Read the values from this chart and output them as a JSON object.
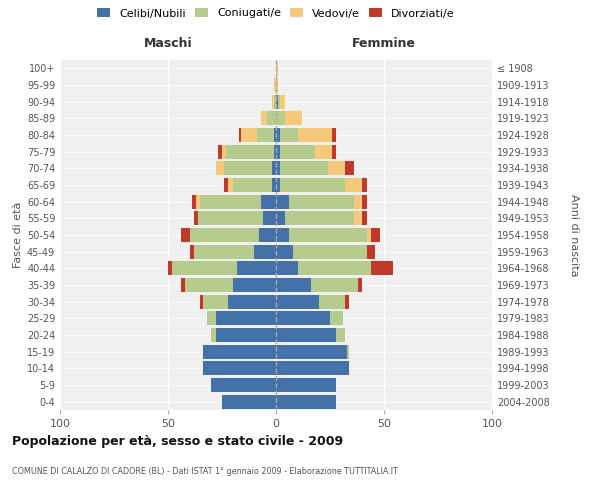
{
  "age_groups": [
    "0-4",
    "5-9",
    "10-14",
    "15-19",
    "20-24",
    "25-29",
    "30-34",
    "35-39",
    "40-44",
    "45-49",
    "50-54",
    "55-59",
    "60-64",
    "65-69",
    "70-74",
    "75-79",
    "80-84",
    "85-89",
    "90-94",
    "95-99",
    "100+"
  ],
  "birth_years": [
    "2004-2008",
    "1999-2003",
    "1994-1998",
    "1989-1993",
    "1984-1988",
    "1979-1983",
    "1974-1978",
    "1969-1973",
    "1964-1968",
    "1959-1963",
    "1954-1958",
    "1949-1953",
    "1944-1948",
    "1939-1943",
    "1934-1938",
    "1929-1933",
    "1924-1928",
    "1919-1923",
    "1914-1918",
    "1909-1913",
    "≤ 1908"
  ],
  "colors": {
    "celibi": "#4472a8",
    "coniugati": "#b5cc8e",
    "vedovi": "#f5c97a",
    "divorziati": "#c0392b"
  },
  "maschi": {
    "celibi": [
      25,
      30,
      34,
      34,
      28,
      28,
      22,
      20,
      18,
      10,
      8,
      6,
      7,
      2,
      2,
      1,
      1,
      0,
      0,
      0,
      0
    ],
    "coniugati": [
      0,
      0,
      0,
      0,
      2,
      4,
      12,
      22,
      30,
      28,
      32,
      30,
      28,
      18,
      22,
      22,
      8,
      4,
      1,
      0,
      0
    ],
    "vedovi": [
      0,
      0,
      0,
      0,
      0,
      0,
      0,
      0,
      0,
      0,
      0,
      0,
      2,
      2,
      4,
      2,
      7,
      3,
      1,
      1,
      0
    ],
    "divorziati": [
      0,
      0,
      0,
      0,
      0,
      0,
      1,
      2,
      2,
      2,
      4,
      2,
      2,
      2,
      0,
      2,
      1,
      0,
      0,
      0,
      0
    ]
  },
  "femmine": {
    "celibi": [
      28,
      28,
      34,
      33,
      28,
      25,
      20,
      16,
      10,
      8,
      6,
      4,
      6,
      2,
      2,
      2,
      2,
      0,
      1,
      0,
      0
    ],
    "coniugati": [
      0,
      0,
      0,
      1,
      4,
      6,
      12,
      22,
      34,
      34,
      36,
      32,
      30,
      30,
      22,
      16,
      8,
      4,
      1,
      0,
      0
    ],
    "vedovi": [
      0,
      0,
      0,
      0,
      0,
      0,
      0,
      0,
      0,
      0,
      2,
      4,
      4,
      8,
      8,
      8,
      16,
      8,
      2,
      1,
      1
    ],
    "divorziati": [
      0,
      0,
      0,
      0,
      0,
      0,
      2,
      2,
      10,
      4,
      4,
      2,
      2,
      2,
      4,
      2,
      2,
      0,
      0,
      0,
      0
    ]
  },
  "title": "Popolazione per età, sesso e stato civile - 2009",
  "subtitle": "COMUNE DI CALALZO DI CADORE (BL) - Dati ISTAT 1° gennaio 2009 - Elaborazione TUTTITALIA.IT",
  "xlabel_left": "Maschi",
  "xlabel_right": "Femmine",
  "ylabel_left": "Fasce di età",
  "ylabel_right": "Anni di nascita",
  "legend_labels": [
    "Celibi/Nubili",
    "Coniugati/e",
    "Vedovi/e",
    "Divorziati/e"
  ],
  "xlim": 100,
  "background_color": "#ffffff",
  "plot_bg": "#f0f0f0",
  "grid_color": "#cccccc",
  "bar_height": 0.85
}
